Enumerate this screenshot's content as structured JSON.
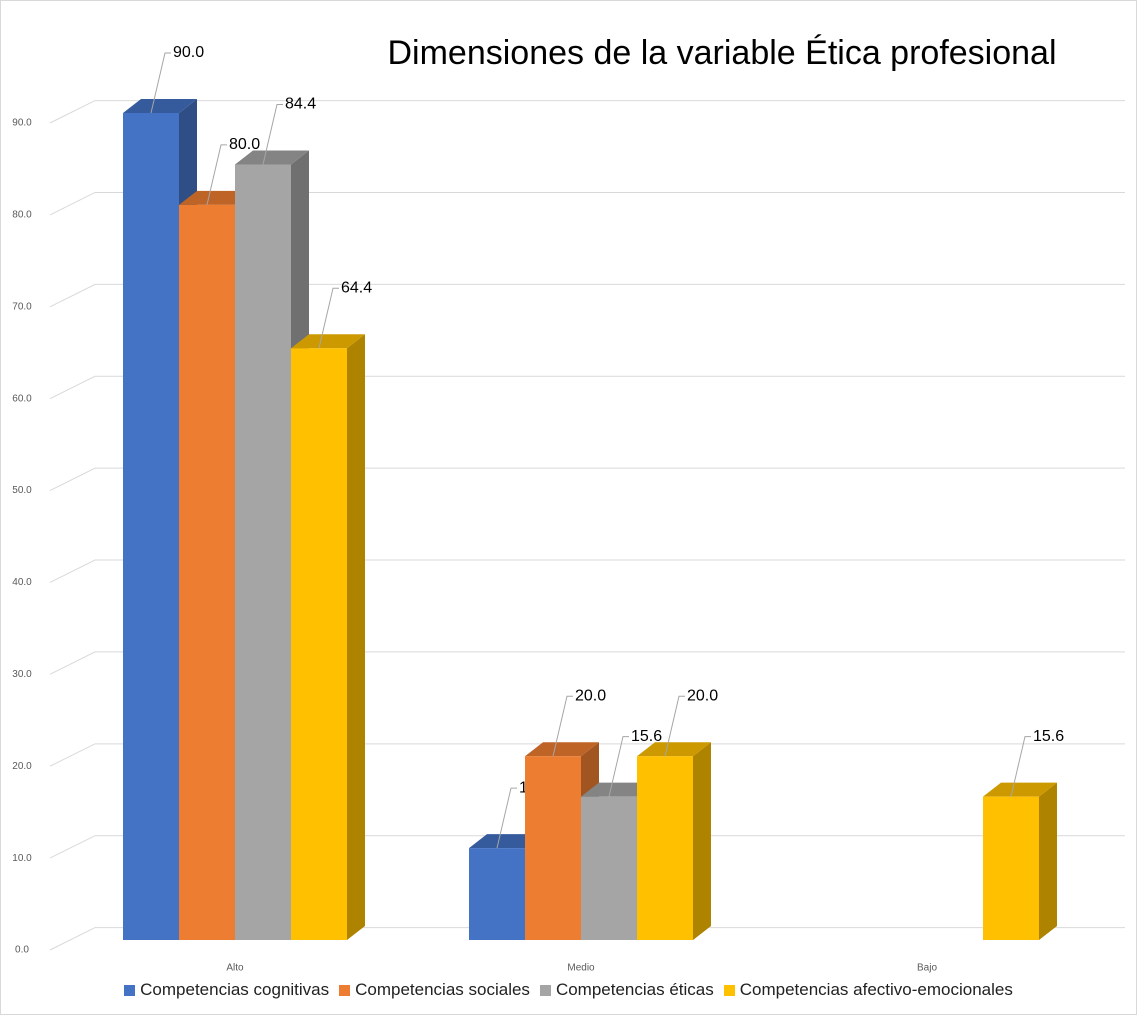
{
  "chart_data": {
    "type": "bar3d",
    "title": "Dimensiones de la variable Ética profesional",
    "categories": [
      "Alto",
      "Medio",
      "Bajo"
    ],
    "series": [
      {
        "name": "Competencias cognitivas",
        "color": "#4472c4",
        "values": [
          90,
          10,
          null
        ],
        "value_labels": [
          "90.0",
          "10.0",
          null
        ]
      },
      {
        "name": "Competencias sociales",
        "color": "#ed7d31",
        "values": [
          80,
          20,
          null
        ],
        "value_labels": [
          "80.0",
          "20.0",
          null
        ]
      },
      {
        "name": "Competencias éticas",
        "color": "#a5a5a5",
        "values": [
          84.4,
          15.6,
          null
        ],
        "value_labels": [
          "84.4",
          "15.6",
          null
        ]
      },
      {
        "name": "Competencias afectivo-emocionales",
        "color": "#ffc000",
        "values": [
          64.4,
          20,
          15.6
        ],
        "value_labels": [
          "64.4",
          "20.0",
          "15.6"
        ]
      }
    ],
    "ylim": [
      0,
      90
    ],
    "yticks": [
      {
        "value": 0,
        "label": "0.0"
      },
      {
        "value": 10,
        "label": "10.0"
      },
      {
        "value": 20,
        "label": "20.0"
      },
      {
        "value": 30,
        "label": "30.0"
      },
      {
        "value": 40,
        "label": "40.0"
      },
      {
        "value": 50,
        "label": "50.0"
      },
      {
        "value": 60,
        "label": "60.0"
      },
      {
        "value": 70,
        "label": "70.0"
      },
      {
        "value": 80,
        "label": "80.0"
      },
      {
        "value": 90,
        "label": "90.0"
      }
    ],
    "grid": true,
    "legend": "bottom"
  }
}
